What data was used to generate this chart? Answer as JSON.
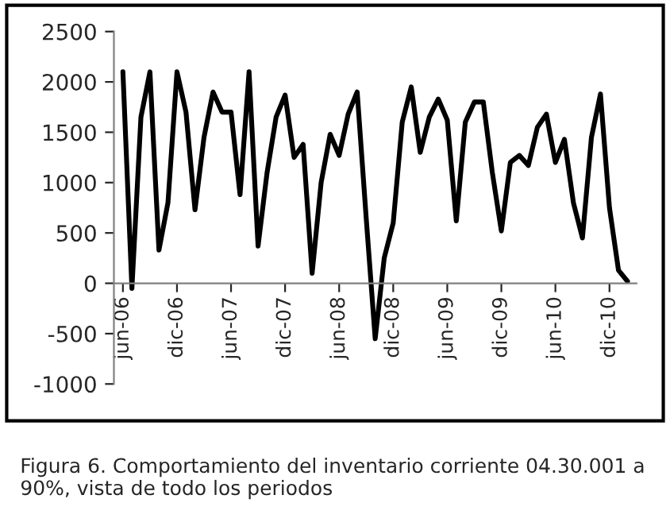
{
  "chart_data": {
    "type": "line",
    "categories": [
      "jun-06",
      null,
      null,
      null,
      null,
      null,
      "dic-06",
      null,
      null,
      null,
      null,
      null,
      "jun-07",
      null,
      null,
      null,
      null,
      null,
      "dic-07",
      null,
      null,
      null,
      null,
      null,
      "jun-08",
      null,
      null,
      null,
      null,
      null,
      "dic-08",
      null,
      null,
      null,
      null,
      null,
      "jun-09",
      null,
      null,
      null,
      null,
      null,
      "dic-09",
      null,
      null,
      null,
      null,
      null,
      "jun-10",
      null,
      null,
      null,
      null,
      null,
      "dic-10",
      null,
      null
    ],
    "series": [
      {
        "color": "#000000",
        "values": [
          2100,
          -50,
          1650,
          2100,
          330,
          800,
          2100,
          1700,
          730,
          1450,
          1900,
          1700,
          1700,
          880,
          2100,
          370,
          1100,
          1650,
          1870,
          1250,
          1380,
          100,
          1000,
          1480,
          1270,
          1680,
          1900,
          650,
          -550,
          250,
          600,
          1600,
          1950,
          1300,
          1650,
          1830,
          1620,
          620,
          1600,
          1800,
          1800,
          1100,
          520,
          1200,
          1270,
          1170,
          1550,
          1680,
          1200,
          1430,
          800,
          450,
          1450,
          1880,
          750,
          130,
          20
        ]
      }
    ],
    "ylim": [
      -1000,
      2500
    ],
    "yticks": [
      -1000,
      -500,
      0,
      500,
      1000,
      1500,
      2000,
      2500
    ],
    "grid": false,
    "marker": "none",
    "line_style": "solid",
    "annotations": [
      "Figura 6. Comportamiento del inventario corriente 04.30.001 a 90%, vista de todo los periodos"
    ]
  }
}
